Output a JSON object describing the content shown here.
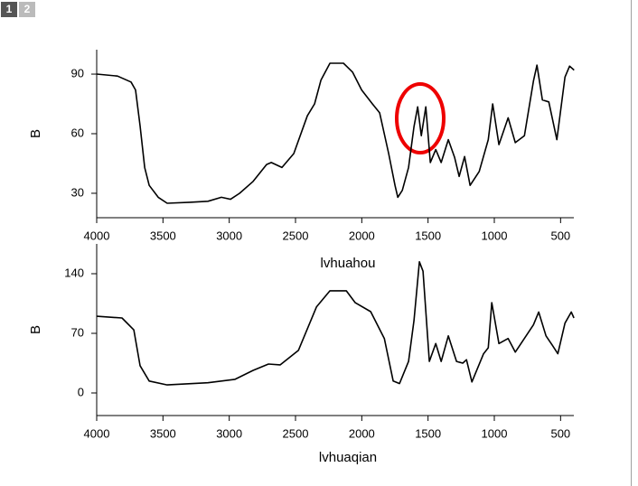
{
  "tabs": [
    "1",
    "2"
  ],
  "chart_data": [
    {
      "type": "line",
      "xlabel": "lvhuahou",
      "ylabel": "B",
      "xlim": [
        4000,
        400
      ],
      "ylim": [
        17.7,
        102.3
      ],
      "xticks": [
        4000,
        3500,
        3000,
        2500,
        2000,
        1500,
        1000,
        500
      ],
      "yticks": [
        30,
        60,
        90
      ],
      "series": [
        {
          "color": "#000000",
          "x": [
            4000,
            3843,
            3741,
            3707,
            3673,
            3638,
            3604,
            3536,
            3468,
            3297,
            3161,
            3059,
            2990,
            2922,
            2820,
            2718,
            2683,
            2602,
            2513,
            2411,
            2356,
            2308,
            2240,
            2138,
            2070,
            2001,
            1920,
            1865,
            1797,
            1749,
            1728,
            1694,
            1647,
            1606,
            1578,
            1551,
            1517,
            1483,
            1442,
            1401,
            1347,
            1299,
            1265,
            1224,
            1183,
            1114,
            1046,
            1012,
            965,
            896,
            842,
            773,
            705,
            678,
            637,
            589,
            528,
            467,
            432,
            398
          ],
          "values": [
            90,
            89,
            86,
            82,
            64,
            43,
            34,
            28,
            25,
            25.5,
            26,
            28,
            27,
            30,
            36,
            44.5,
            45.5,
            43,
            50,
            69,
            75,
            87,
            95.5,
            95.5,
            91,
            82,
            75,
            70.5,
            50,
            34,
            28,
            31.5,
            43,
            63.5,
            73.5,
            59,
            73.5,
            45.5,
            52,
            45.5,
            57,
            48,
            38.5,
            48.5,
            34,
            41,
            57,
            75,
            54.5,
            68,
            55.5,
            59,
            86.5,
            94.5,
            77,
            76,
            57,
            88.5,
            94,
            92
          ]
        }
      ]
    },
    {
      "type": "line",
      "xlabel": "lvhuaqian",
      "ylabel": "B",
      "xlim": [
        4000,
        400
      ],
      "ylim": [
        -26.5,
        175
      ],
      "xticks": [
        4000,
        3500,
        3000,
        2500,
        2000,
        1500,
        1000,
        500
      ],
      "yticks": [
        0,
        70,
        140
      ],
      "series": [
        {
          "color": "#000000",
          "x": [
            4000,
            3809,
            3720,
            3673,
            3604,
            3468,
            3161,
            2956,
            2820,
            2704,
            2615,
            2478,
            2342,
            2240,
            2117,
            2049,
            1933,
            1830,
            1763,
            1715,
            1647,
            1606,
            1565,
            1538,
            1490,
            1442,
            1401,
            1347,
            1285,
            1238,
            1210,
            1169,
            1081,
            1046,
            1019,
            965,
            896,
            842,
            705,
            665,
            610,
            562,
            521,
            467,
            419,
            399
          ],
          "values": [
            90,
            88,
            74,
            32,
            14,
            9.5,
            12,
            16,
            26.5,
            34,
            33,
            50,
            101,
            120,
            120,
            106,
            95.5,
            64,
            14,
            11,
            37,
            85,
            154,
            143,
            37,
            58,
            37,
            67,
            37,
            35,
            39,
            13,
            46,
            53,
            106,
            58,
            64,
            48,
            80,
            95,
            67,
            56,
            46,
            82,
            95,
            88
          ]
        }
      ]
    }
  ]
}
